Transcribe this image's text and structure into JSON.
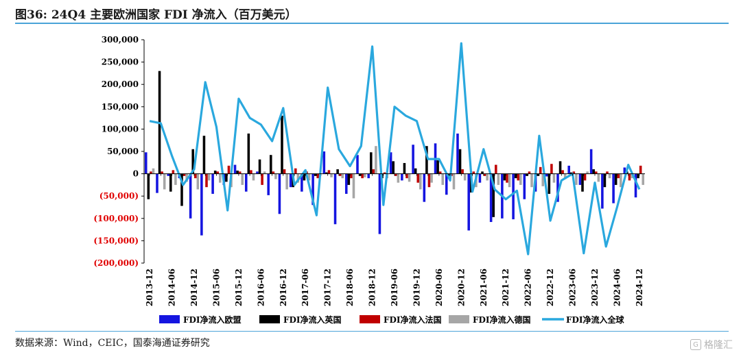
{
  "title": "图36:  24Q4 主要欧洲国家 FDI 净流入（百万美元）",
  "source": "数据来源：Wind，CEIC，国泰海通证券研究",
  "watermark": {
    "icon": "gezhi-logo-icon",
    "text": "格隆汇"
  },
  "colors": {
    "eu": "#1515e0",
    "uk": "#000000",
    "fr": "#c00000",
    "de": "#a6a6a6",
    "global": "#2aa8de",
    "negative_tick": "#e00000",
    "rule": "#4aa3d8"
  },
  "chart_data": {
    "type": "bar",
    "categories": [
      "2013-12",
      "2014-03",
      "2014-06",
      "2014-09",
      "2014-12",
      "2015-03",
      "2015-06",
      "2015-09",
      "2015-12",
      "2016-03",
      "2016-06",
      "2016-09",
      "2016-12",
      "2017-03",
      "2017-06",
      "2017-09",
      "2017-12",
      "2018-03",
      "2018-06",
      "2018-09",
      "2018-12",
      "2019-03",
      "2019-06",
      "2019-09",
      "2019-12",
      "2020-03",
      "2020-06",
      "2020-09",
      "2020-12",
      "2021-03",
      "2021-06",
      "2021-09",
      "2021-12",
      "2022-03",
      "2022-06",
      "2022-09",
      "2022-12",
      "2023-03",
      "2023-06",
      "2023-09",
      "2023-12",
      "2024-03",
      "2024-06",
      "2024-09",
      "2024-12"
    ],
    "x_tick_labels": [
      "2013-12",
      "2014-06",
      "2014-12",
      "2015-06",
      "2015-12",
      "2016-06",
      "2016-12",
      "2017-06",
      "2017-12",
      "2018-06",
      "2018-12",
      "2019-06",
      "2019-12",
      "2020-06",
      "2020-12",
      "2021-06",
      "2021-12",
      "2022-06",
      "2022-12",
      "2023-06",
      "2023-12",
      "2024-06",
      "2024-12"
    ],
    "ylim": [
      -200000,
      300000
    ],
    "y_ticks": [
      300000,
      250000,
      200000,
      150000,
      100000,
      50000,
      0,
      -50000,
      -100000,
      -150000,
      -200000
    ],
    "y_tick_labels": [
      "300,000",
      "250,000",
      "200,000",
      "150,000",
      "100,000",
      "50,000",
      "0",
      "(50,000)",
      "(100,000)",
      "(150,000)",
      "(200,000)"
    ],
    "legend_position": "bottom",
    "series": [
      {
        "name": "FDI净流入欧盟",
        "kind": "bar",
        "values": [
          48000,
          -43000,
          -5000,
          -10000,
          -100000,
          -138000,
          -45000,
          -25000,
          20000,
          -40000,
          5000,
          -48000,
          -90000,
          -30000,
          -40000,
          -70000,
          50000,
          -113000,
          -45000,
          42000,
          -10000,
          -135000,
          48000,
          -15000,
          65000,
          -63000,
          68000,
          -47000,
          90000,
          -127000,
          -20000,
          -108000,
          -100000,
          -102000,
          -57000,
          -40000,
          -6000,
          -63000,
          18000,
          -25000,
          55000,
          -78000,
          -66000,
          14000,
          -53000
        ]
      },
      {
        "name": "FDI净流入英国",
        "kind": "bar",
        "values": [
          -57000,
          230000,
          -40000,
          -72000,
          55000,
          85000,
          7000,
          -18000,
          7000,
          90000,
          32000,
          42000,
          130000,
          -30000,
          -15000,
          -5000,
          3000,
          10000,
          -25000,
          -5000,
          48000,
          -10000,
          28000,
          24000,
          12000,
          62000,
          30000,
          -5000,
          55000,
          -42000,
          5000,
          -97000,
          -15000,
          -10000,
          -5000,
          -5000,
          -45000,
          28000,
          3000,
          -40000,
          10000,
          -30000,
          -25000,
          5000,
          -10000
        ]
      },
      {
        "name": "FDI净流入法国",
        "kind": "bar",
        "values": [
          5000,
          5000,
          8000,
          -5000,
          -10000,
          -30000,
          5000,
          18000,
          5000,
          8000,
          -25000,
          5000,
          10000,
          12000,
          5000,
          -10000,
          8000,
          -5000,
          -10000,
          -10000,
          10000,
          3000,
          -5000,
          -10000,
          -20000,
          -30000,
          5000,
          -5000,
          10000,
          5000,
          -5000,
          20000,
          -20000,
          -15000,
          5000,
          15000,
          22000,
          8000,
          5000,
          -15000,
          5000,
          5000,
          -10000,
          -15000,
          18000
        ]
      },
      {
        "name": "FDI净流入德国",
        "kind": "bar",
        "values": [
          12000,
          -35000,
          -25000,
          -18000,
          -35000,
          -15000,
          -20000,
          -30000,
          -25000,
          -15000,
          5000,
          -12000,
          -35000,
          -20000,
          -15000,
          -5000,
          -8000,
          -10000,
          -55000,
          -8000,
          62000,
          -10000,
          -20000,
          -18000,
          -35000,
          -20000,
          -25000,
          -35000,
          -15000,
          -30000,
          -15000,
          -25000,
          -30000,
          -25000,
          -30000,
          -28000,
          -20000,
          -12000,
          -25000,
          5000,
          -18000,
          -10000,
          -30000,
          -10000,
          -25000
        ]
      },
      {
        "name": "FDI净流入全球",
        "kind": "line",
        "values": [
          118000,
          113000,
          40000,
          -25000,
          10000,
          205000,
          105000,
          -82000,
          168000,
          125000,
          110000,
          73000,
          147000,
          -25000,
          8000,
          -93000,
          193000,
          55000,
          17000,
          62000,
          285000,
          -70000,
          150000,
          130000,
          118000,
          33000,
          33000,
          -15000,
          292000,
          -40000,
          55000,
          -35000,
          -57000,
          -38000,
          -180000,
          85000,
          -105000,
          -15000,
          0,
          -178000,
          -20000,
          -163000,
          -75000,
          20000,
          -35000
        ]
      }
    ]
  }
}
